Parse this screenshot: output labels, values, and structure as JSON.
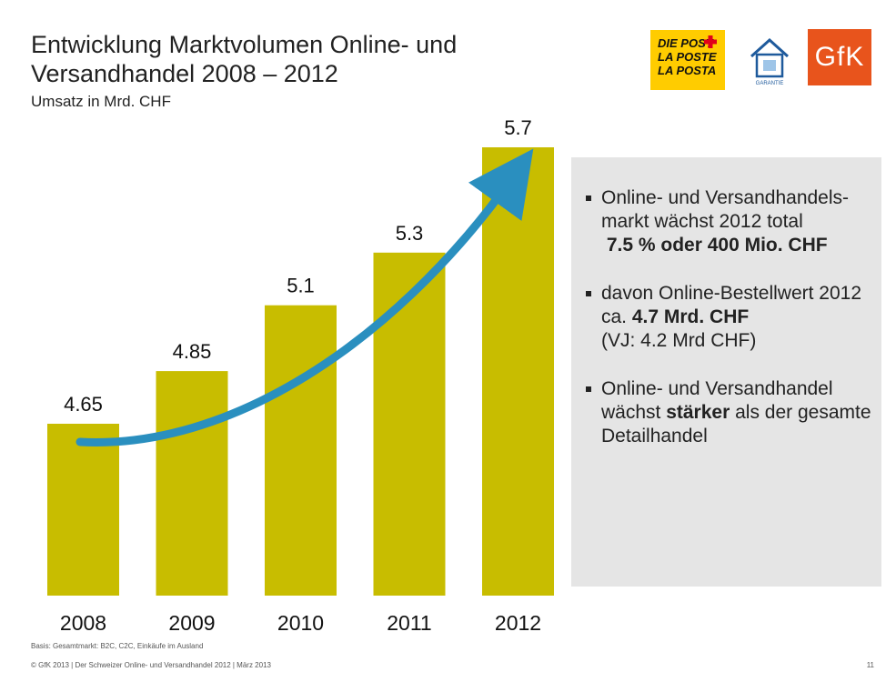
{
  "header": {
    "title_line1": "Entwicklung Marktvolumen  Online- und",
    "title_line2": "Versandhandel  2008 – 2012",
    "subtitle": "Umsatz in Mrd. CHF"
  },
  "logos": {
    "post_lines": [
      "DIE POST",
      "LA POSTE",
      "LA POSTA"
    ],
    "garantie_label": "GARANTIE",
    "gfk_label": "GfK",
    "post_color": "#ffcc00",
    "gfk_color": "#e8541c"
  },
  "chart_data": {
    "type": "bar",
    "categories": [
      "2008",
      "2009",
      "2010",
      "2011",
      "2012"
    ],
    "values": [
      4.65,
      4.85,
      5.1,
      5.3,
      5.7
    ],
    "data_labels": [
      "4.65",
      "4.85",
      "5.1",
      "5.3",
      "5.7"
    ],
    "title": "Entwicklung Marktvolumen Online- und Versandhandel 2008 – 2012",
    "subtitle": "Umsatz in Mrd. CHF",
    "xlabel": "",
    "ylabel": "",
    "grid": false,
    "legend": "none",
    "bar_color": "#c8bd00",
    "arrow_color": "#2a8fbf"
  },
  "bullets": [
    {
      "text_plain": "Online- und Versandhandels-markt wächst 2012 total",
      "text_bold": "7.5 % oder 400 Mio. CHF",
      "text_after": ""
    },
    {
      "text_plain": "davon Online-Bestellwert 2012 ca.",
      "text_bold": "4.7 Mrd. CHF",
      "text_after": "(VJ:  4.2 Mrd CHF)"
    },
    {
      "text_plain": "Online- und Versandhandel wächst",
      "text_bold": "stärker",
      "text_after": "als der gesamte Detailhandel"
    }
  ],
  "footer": {
    "basis": "Basis: Gesamtmarkt: B2C, C2C, Einkäufe im Ausland",
    "source": "© GfK 2013 | Der Schweizer Online- und Versandhandel 2012 | März 2013",
    "page": "11"
  }
}
